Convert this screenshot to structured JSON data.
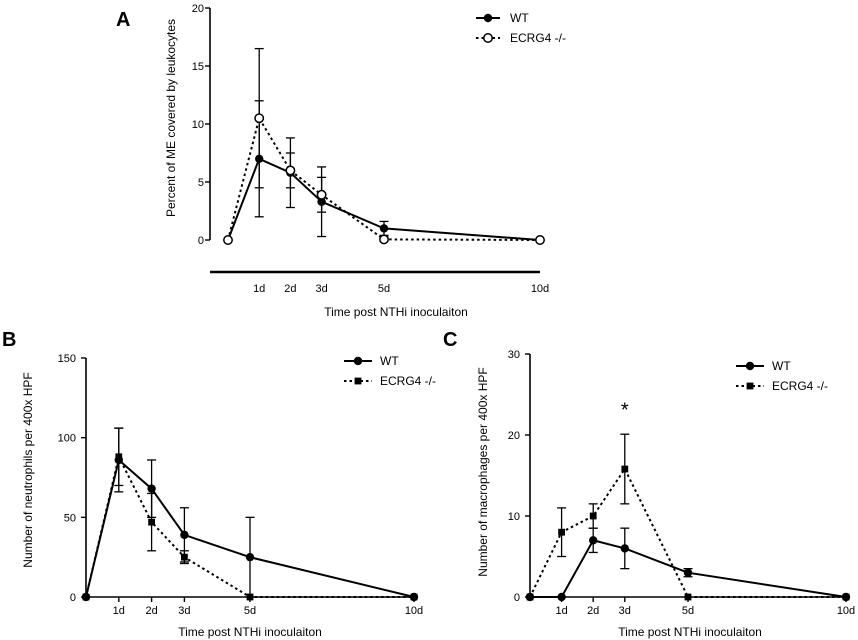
{
  "chart_data": [
    {
      "panel": "A",
      "type": "line",
      "categories": [
        "0",
        "1d",
        "2d",
        "3d",
        "5d",
        "10d"
      ],
      "x_days": [
        0,
        1,
        2,
        3,
        5,
        10
      ],
      "x_tick_labels": [
        "1d",
        "2d",
        "3d",
        "5d",
        "10d"
      ],
      "xlabel": "Time post NTHi inoculaiton",
      "ylabel": "Percent of ME covered by leukocytes",
      "ylim": [
        0,
        20
      ],
      "yticks": [
        "0",
        "5",
        "10",
        "15",
        "20"
      ],
      "x_axis_style": "separate-bar",
      "legend_position": "top-right",
      "annotation": "",
      "series": [
        {
          "name": "WT",
          "style": "solid",
          "marker": "filled-circle",
          "values": [
            0,
            7,
            5.8,
            3.3,
            1,
            0
          ],
          "errors": [
            0,
            5,
            3,
            3,
            0.6,
            0
          ]
        },
        {
          "name": "ECRG4 -/-",
          "style": "dotted",
          "marker": "open-circle",
          "values": [
            0,
            10.5,
            6,
            3.9,
            0.05,
            0
          ],
          "errors": [
            0,
            6,
            1.5,
            1.5,
            0.3,
            0
          ]
        }
      ]
    },
    {
      "panel": "B",
      "type": "line",
      "categories": [
        "0",
        "1d",
        "2d",
        "3d",
        "5d",
        "10d"
      ],
      "x_days": [
        0,
        1,
        2,
        3,
        5,
        10
      ],
      "x_tick_labels": [
        "1d",
        "2d",
        "3d",
        "5d",
        "10d"
      ],
      "xlabel": "Time post NTHi inoculaiton",
      "ylabel": "Number of neutrophils per 400x HPF",
      "ylim": [
        0,
        150
      ],
      "yticks": [
        "0",
        "50",
        "100",
        "150"
      ],
      "x_axis_style": "attached",
      "legend_position": "top-right",
      "annotation": "",
      "series": [
        {
          "name": "WT",
          "style": "solid",
          "marker": "filled-circle",
          "values": [
            0,
            86,
            68,
            39,
            25,
            0
          ],
          "errors": [
            0,
            20,
            18,
            17,
            25,
            0
          ]
        },
        {
          "name": "ECRG4 -/-",
          "style": "dotted",
          "marker": "filled-square",
          "values": [
            0,
            88,
            47,
            25,
            0,
            0
          ],
          "errors": [
            0,
            18,
            18,
            4,
            0,
            0
          ]
        }
      ]
    },
    {
      "panel": "C",
      "type": "line",
      "categories": [
        "0",
        "1d",
        "2d",
        "3d",
        "5d",
        "10d"
      ],
      "x_days": [
        0,
        1,
        2,
        3,
        5,
        10
      ],
      "x_tick_labels": [
        "1d",
        "2d",
        "3d",
        "5d",
        "10d"
      ],
      "xlabel": "Time post NTHi inoculaiton",
      "ylabel": "Number of macrophages per 400x HPF",
      "ylim": [
        0,
        30
      ],
      "yticks": [
        "0",
        "10",
        "20",
        "30"
      ],
      "x_axis_style": "attached",
      "legend_position": "top-right",
      "annotation": "*",
      "annotation_at_day": 3,
      "annotation_at_value": 23.5,
      "series": [
        {
          "name": "WT",
          "style": "solid",
          "marker": "filled-circle",
          "values": [
            0,
            0,
            7,
            6,
            3,
            0
          ],
          "errors": [
            0,
            0,
            1.5,
            2.5,
            0.5,
            0
          ]
        },
        {
          "name": "ECRG4 -/-",
          "style": "dotted",
          "marker": "filled-square",
          "values": [
            0,
            8,
            10,
            15.8,
            0,
            0
          ],
          "errors": [
            0,
            3,
            1.5,
            4.3,
            0,
            0
          ]
        }
      ]
    }
  ]
}
